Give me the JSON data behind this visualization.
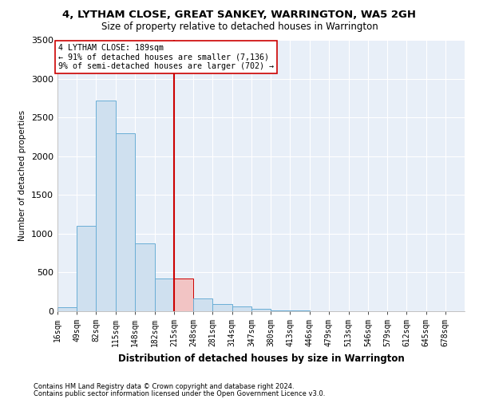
{
  "title1": "4, LYTHAM CLOSE, GREAT SANKEY, WARRINGTON, WA5 2GH",
  "title2": "Size of property relative to detached houses in Warrington",
  "xlabel": "Distribution of detached houses by size in Warrington",
  "ylabel": "Number of detached properties",
  "footnote1": "Contains HM Land Registry data © Crown copyright and database right 2024.",
  "footnote2": "Contains public sector information licensed under the Open Government Licence v3.0.",
  "annotation_line1": "4 LYTHAM CLOSE: 189sqm",
  "annotation_line2": "← 91% of detached houses are smaller (7,136)",
  "annotation_line3": "9% of semi-detached houses are larger (702) →",
  "bar_color": "#cfe0ef",
  "bar_edge_color": "#6aaed6",
  "highlight_bar_color": "#f2c4c4",
  "highlight_bar_edge_color": "#cc0000",
  "vline_color": "#cc0000",
  "background_color": "#e8eff8",
  "property_size": 189,
  "vline_x": 215,
  "bin_edges": [
    16,
    49,
    82,
    115,
    148,
    182,
    215,
    248,
    281,
    314,
    347,
    380,
    413,
    446,
    479,
    513,
    546,
    579,
    612,
    645,
    678
  ],
  "bar_heights": [
    50,
    1100,
    2720,
    2300,
    870,
    420,
    420,
    160,
    90,
    60,
    35,
    10,
    8,
    4,
    2,
    1,
    0,
    0,
    0,
    0
  ],
  "highlight_idx": 6,
  "ylim": [
    0,
    3500
  ],
  "yticks": [
    0,
    500,
    1000,
    1500,
    2000,
    2500,
    3000,
    3500
  ]
}
